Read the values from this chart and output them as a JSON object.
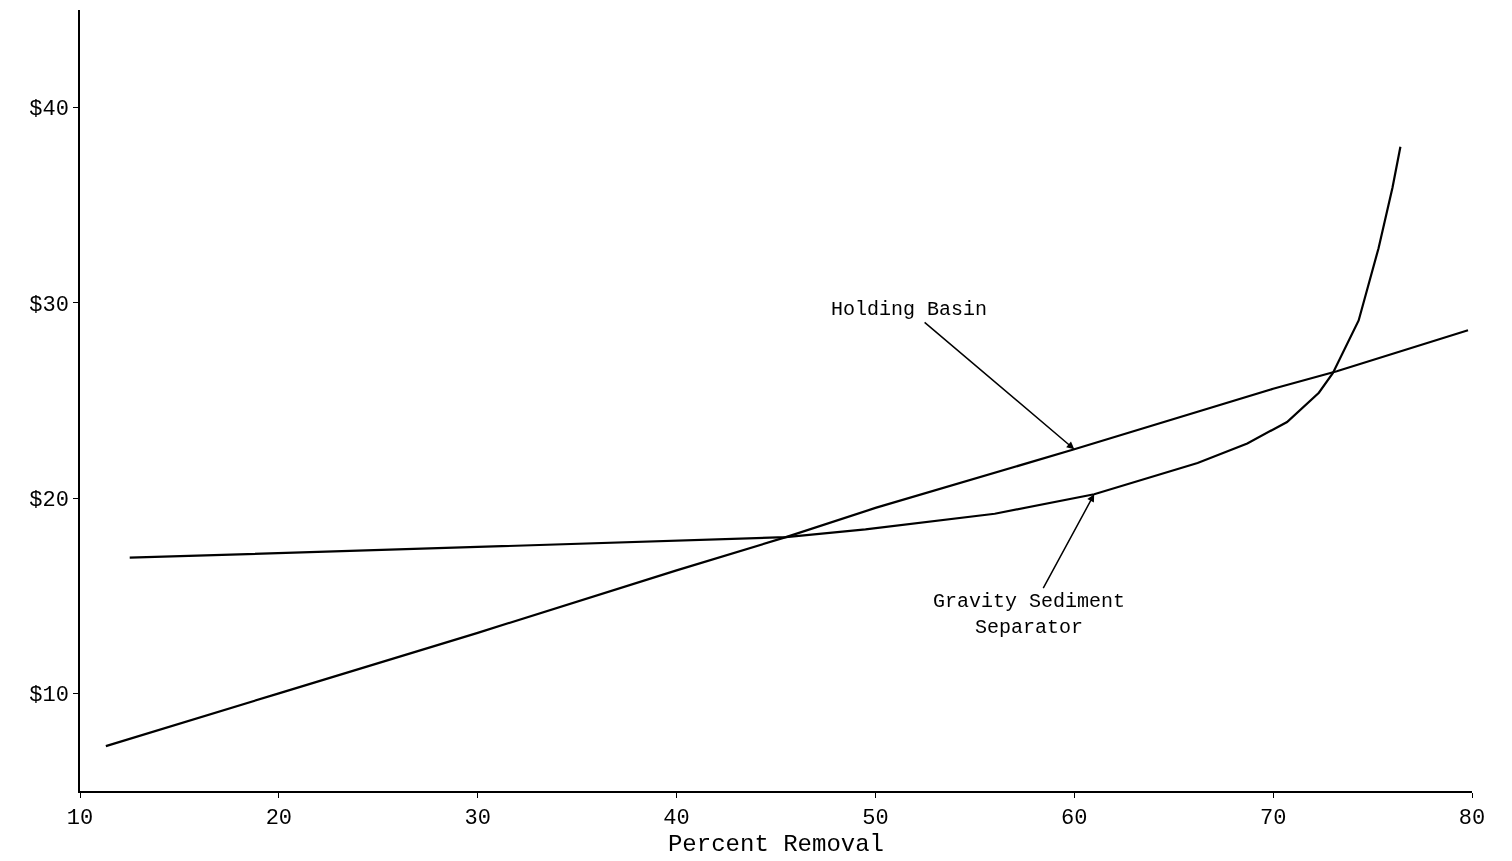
{
  "chart_data": {
    "type": "line",
    "xlabel": "Percent Removal",
    "xlim": [
      10,
      80
    ],
    "xticks": [
      10,
      20,
      30,
      40,
      50,
      60,
      70,
      80
    ],
    "ylim": [
      5,
      45
    ],
    "yticks": [
      {
        "value": 10,
        "label": "$10"
      },
      {
        "value": 20,
        "label": "$20"
      },
      {
        "value": 30,
        "label": "$30"
      },
      {
        "value": 40,
        "label": "$40"
      }
    ],
    "marker": "none",
    "line_style": "solid",
    "series": [
      {
        "color": "#000000",
        "x": [
          11.3,
          20,
          30,
          40,
          45.5,
          50,
          60,
          70,
          73.2,
          79.8
        ],
        "values": [
          7.3,
          10.0,
          13.1,
          16.3,
          18.0,
          19.5,
          22.5,
          25.6,
          26.5,
          28.6
        ]
      },
      {
        "color": "#000000",
        "x": [
          12.5,
          30,
          45.5,
          49.5,
          56,
          61,
          66.2,
          68.7,
          70.7,
          72.3,
          73.0,
          74.3,
          75.3,
          76.0,
          76.4
        ],
        "values": [
          16.95,
          17.5,
          18.0,
          18.4,
          19.2,
          20.2,
          21.8,
          22.8,
          23.9,
          25.4,
          26.4,
          29.1,
          32.8,
          35.9,
          38.0
        ]
      }
    ],
    "annotations": [
      {
        "text": "Holding Basin",
        "x": 60,
        "y": 22.5
      },
      {
        "text": "Gravity Sediment\nSeparator",
        "x": 61,
        "y": 20.2
      }
    ]
  }
}
